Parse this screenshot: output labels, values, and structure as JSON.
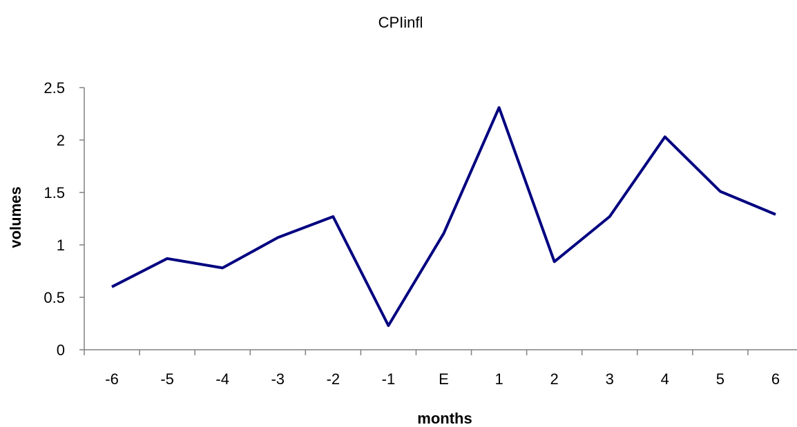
{
  "chart_data": {
    "type": "line",
    "title": "CPIinfl",
    "xlabel": "months",
    "ylabel": "volumes",
    "categories": [
      "-6",
      "-5",
      "-4",
      "-3",
      "-2",
      "-1",
      "E",
      "1",
      "2",
      "3",
      "4",
      "5",
      "6"
    ],
    "series": [
      {
        "values": [
          0.6,
          0.87,
          0.78,
          1.07,
          1.27,
          0.23,
          1.11,
          2.31,
          0.84,
          1.27,
          2.03,
          1.51,
          1.29
        ]
      }
    ],
    "ylim": [
      0,
      2.5
    ],
    "yticks": [
      "0",
      "0.5",
      "1",
      "1.5",
      "2",
      "2.5"
    ],
    "grid": false,
    "legend": "none",
    "colors": {
      "series": "#000080",
      "axis": "#808080"
    }
  }
}
